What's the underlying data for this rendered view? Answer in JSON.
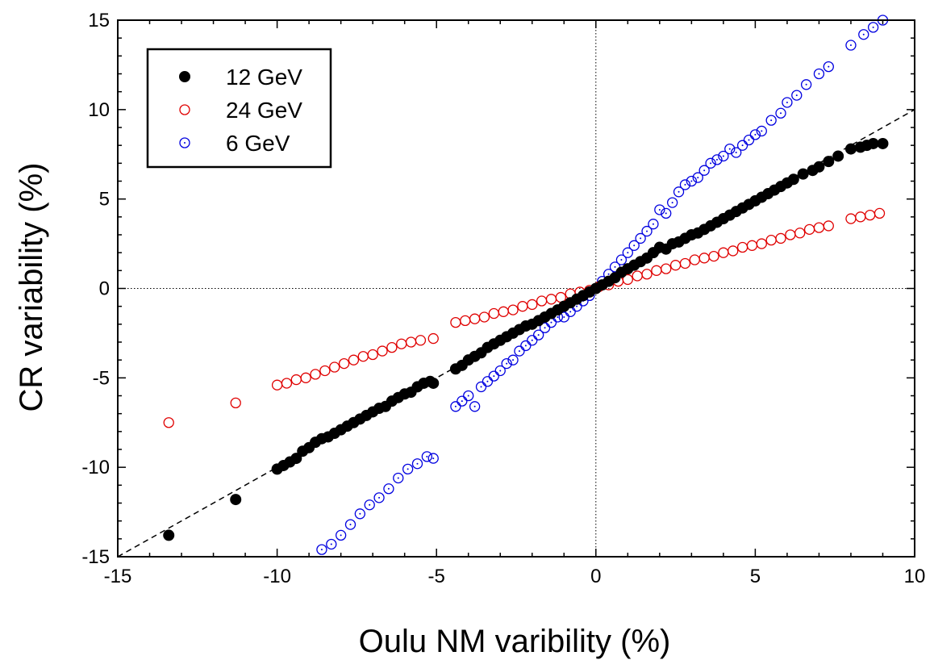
{
  "chart_data": {
    "type": "scatter",
    "title": "",
    "xlabel": "Oulu NM varibility (%)",
    "ylabel": "CR variability (%)",
    "xlim": [
      -15,
      10
    ],
    "ylim": [
      -15,
      15
    ],
    "x_ticks": [
      -15,
      -10,
      -5,
      0,
      5,
      10
    ],
    "y_ticks": [
      -15,
      -10,
      -5,
      0,
      5,
      10,
      15
    ],
    "x_tick_labels": [
      "-15",
      "-10",
      "-5",
      "0",
      "5",
      "10"
    ],
    "y_tick_labels": [
      "-15",
      "-10",
      "-5",
      "0",
      "5",
      "10",
      "15"
    ],
    "grid": false,
    "reference_lines": [
      {
        "name": "y = x",
        "style": "dashed"
      },
      {
        "name": "x = 0",
        "style": "dotted"
      },
      {
        "name": "y = 0",
        "style": "dotted"
      }
    ],
    "legend": {
      "placement": "top-left",
      "entries": [
        "12 GeV",
        "24 GeV",
        "6 GeV"
      ]
    },
    "colors": {
      "s12": "#000000",
      "s24": "#e00000",
      "s6": "#0000e0"
    },
    "series": [
      {
        "name": "12 GeV",
        "marker": "filled-circle",
        "x": [
          -13.4,
          -11.3,
          -10,
          -9.8,
          -9.6,
          -9.4,
          -9.2,
          -9,
          -8.8,
          -8.6,
          -8.4,
          -8.2,
          -8,
          -7.8,
          -7.6,
          -7.4,
          -7.2,
          -7,
          -6.8,
          -6.6,
          -6.4,
          -6.2,
          -6,
          -5.8,
          -5.6,
          -5.4,
          -5.2,
          -5.1,
          -4.4,
          -4.2,
          -4,
          -3.8,
          -3.6,
          -3.4,
          -3.2,
          -3,
          -2.8,
          -2.6,
          -2.4,
          -2.2,
          -2,
          -1.8,
          -1.6,
          -1.4,
          -1.2,
          -1,
          -0.8,
          -0.6,
          -0.4,
          -0.2,
          0,
          0.2,
          0.4,
          0.6,
          0.8,
          1,
          1.2,
          1.4,
          1.6,
          1.8,
          2,
          2.2,
          2.4,
          2.6,
          2.8,
          3,
          3.2,
          3.4,
          3.6,
          3.8,
          4,
          4.2,
          4.4,
          4.6,
          4.8,
          5,
          5.2,
          5.4,
          5.6,
          5.8,
          6,
          6.2,
          6.5,
          6.8,
          7,
          7.3,
          7.6,
          8,
          8.3,
          8.5,
          8.7,
          9
        ],
        "y": [
          -13.8,
          -11.8,
          -10.1,
          -9.9,
          -9.7,
          -9.5,
          -9.1,
          -8.9,
          -8.6,
          -8.4,
          -8.3,
          -8.1,
          -7.9,
          -7.7,
          -7.5,
          -7.3,
          -7.1,
          -6.9,
          -6.7,
          -6.6,
          -6.3,
          -6.1,
          -5.9,
          -5.8,
          -5.5,
          -5.3,
          -5.2,
          -5.3,
          -4.5,
          -4.3,
          -4,
          -3.8,
          -3.6,
          -3.3,
          -3.1,
          -2.9,
          -2.7,
          -2.5,
          -2.3,
          -2.1,
          -2,
          -1.8,
          -1.6,
          -1.4,
          -1.2,
          -1,
          -0.8,
          -0.6,
          -0.4,
          -0.2,
          0,
          0.2,
          0.4,
          0.6,
          0.9,
          1.1,
          1.3,
          1.5,
          1.7,
          2,
          2.3,
          2.2,
          2.5,
          2.6,
          2.8,
          3,
          3.1,
          3.3,
          3.5,
          3.7,
          3.9,
          4.1,
          4.3,
          4.5,
          4.7,
          4.9,
          5.1,
          5.3,
          5.5,
          5.7,
          5.9,
          6.1,
          6.4,
          6.6,
          6.8,
          7.1,
          7.4,
          7.8,
          7.9,
          8,
          8.1,
          8.1
        ]
      },
      {
        "name": "24 GeV",
        "marker": "open-circle",
        "x": [
          -13.4,
          -11.3,
          -10,
          -9.7,
          -9.4,
          -9.1,
          -8.8,
          -8.5,
          -8.2,
          -7.9,
          -7.6,
          -7.3,
          -7,
          -6.7,
          -6.4,
          -6.1,
          -5.8,
          -5.5,
          -5.1,
          -4.4,
          -4.1,
          -3.8,
          -3.5,
          -3.2,
          -2.9,
          -2.6,
          -2.3,
          -2,
          -1.7,
          -1.4,
          -1.1,
          -0.8,
          -0.5,
          -0.2,
          0.1,
          0.4,
          0.7,
          1,
          1.3,
          1.6,
          1.9,
          2.2,
          2.5,
          2.8,
          3.1,
          3.4,
          3.7,
          4,
          4.3,
          4.6,
          4.9,
          5.2,
          5.5,
          5.8,
          6.1,
          6.4,
          6.7,
          7,
          7.3,
          8,
          8.3,
          8.6,
          8.9
        ],
        "y": [
          -7.5,
          -6.4,
          -5.4,
          -5.3,
          -5.1,
          -5,
          -4.8,
          -4.6,
          -4.4,
          -4.2,
          -4,
          -3.8,
          -3.7,
          -3.5,
          -3.3,
          -3.1,
          -3,
          -2.9,
          -2.8,
          -1.9,
          -1.8,
          -1.7,
          -1.6,
          -1.4,
          -1.3,
          -1.2,
          -1,
          -0.9,
          -0.7,
          -0.6,
          -0.5,
          -0.3,
          -0.2,
          -0.1,
          0.1,
          0.2,
          0.4,
          0.5,
          0.7,
          0.8,
          1,
          1.1,
          1.3,
          1.4,
          1.6,
          1.7,
          1.8,
          2,
          2.1,
          2.3,
          2.4,
          2.5,
          2.7,
          2.8,
          3,
          3.1,
          3.3,
          3.4,
          3.5,
          3.9,
          4,
          4.1,
          4.2
        ]
      },
      {
        "name": "6 GeV",
        "marker": "open-circle-dot",
        "x": [
          -8.6,
          -8.3,
          -8,
          -7.7,
          -7.4,
          -7.1,
          -6.8,
          -6.5,
          -6.2,
          -5.9,
          -5.6,
          -5.3,
          -5.1,
          -4.4,
          -4.2,
          -4,
          -3.8,
          -3.6,
          -3.4,
          -3.2,
          -3,
          -2.8,
          -2.6,
          -2.4,
          -2.2,
          -2,
          -1.8,
          -1.6,
          -1.4,
          -1.2,
          -1,
          -0.8,
          -0.6,
          -0.4,
          -0.2,
          0,
          0.2,
          0.4,
          0.6,
          0.8,
          1,
          1.2,
          1.4,
          1.6,
          1.8,
          2,
          2.2,
          2.4,
          2.6,
          2.8,
          3,
          3.2,
          3.4,
          3.6,
          3.8,
          4,
          4.2,
          4.4,
          4.6,
          4.8,
          5,
          5.2,
          5.5,
          5.8,
          6,
          6.3,
          6.6,
          7,
          7.3,
          8,
          8.4,
          8.7,
          9
        ],
        "y": [
          -14.6,
          -14.3,
          -13.8,
          -13.2,
          -12.6,
          -12.1,
          -11.7,
          -11.2,
          -10.6,
          -10.1,
          -9.8,
          -9.4,
          -9.5,
          -6.6,
          -6.3,
          -6,
          -6.6,
          -5.5,
          -5.2,
          -4.9,
          -4.6,
          -4.2,
          -4,
          -3.5,
          -3.2,
          -2.9,
          -2.6,
          -2.2,
          -1.9,
          -1.6,
          -1.6,
          -1.3,
          -1,
          -0.7,
          -0.4,
          0,
          0.4,
          0.8,
          1.2,
          1.6,
          2,
          2.4,
          2.8,
          3.2,
          3.6,
          4.4,
          4.2,
          4.8,
          5.4,
          5.8,
          6,
          6.2,
          6.6,
          7,
          7.2,
          7.4,
          7.8,
          7.6,
          8,
          8.3,
          8.6,
          8.8,
          9.4,
          9.8,
          10.4,
          10.8,
          11.4,
          12,
          12.4,
          13.6,
          14.2,
          14.6,
          15
        ]
      }
    ]
  }
}
